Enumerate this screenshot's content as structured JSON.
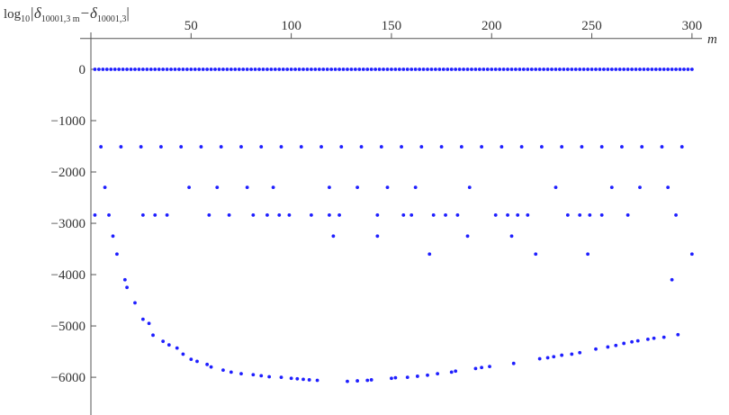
{
  "chart_data": {
    "type": "scatter",
    "ylabel_parts": [
      "log",
      "10",
      "|δ",
      "10001,3 m",
      "−δ",
      "10001,3",
      "|"
    ],
    "xlabel": "m",
    "color": "#1f1fff",
    "xlim": [
      0,
      305
    ],
    "ylim": [
      -6700,
      1245
    ],
    "x_axis_at": 600,
    "xticks": [
      50,
      100,
      150,
      200,
      250,
      300
    ],
    "yticks": [
      0,
      {
        "value": -1000,
        "label": "−1000"
      },
      {
        "value": -2000,
        "label": "−2000"
      },
      {
        "value": -3000,
        "label": "−3000"
      },
      {
        "value": -4000,
        "label": "−4000"
      },
      {
        "value": -5000,
        "label": "−5000"
      },
      {
        "value": -6000,
        "label": "−6000"
      }
    ],
    "x": [
      2,
      4,
      6,
      8,
      10,
      12,
      14,
      16,
      18,
      20,
      22,
      24,
      26,
      28,
      30,
      32,
      34,
      36,
      38,
      40,
      42,
      44,
      46,
      48,
      50,
      52,
      54,
      56,
      58,
      60,
      62,
      64,
      66,
      68,
      70,
      72,
      74,
      76,
      78,
      80,
      82,
      84,
      86,
      88,
      90,
      92,
      94,
      96,
      98,
      100,
      102,
      104,
      106,
      108,
      110,
      112,
      114,
      116,
      118,
      120,
      122,
      124,
      126,
      128,
      130,
      132,
      134,
      136,
      138,
      140,
      142,
      144,
      146,
      148,
      150,
      152,
      154,
      156,
      158,
      160,
      162,
      164,
      166,
      168,
      170,
      172,
      174,
      176,
      178,
      180,
      182,
      184,
      186,
      188,
      190,
      192,
      194,
      196,
      198,
      200,
      202,
      204,
      206,
      208,
      210,
      212,
      214,
      216,
      218,
      220,
      222,
      224,
      226,
      228,
      230,
      232,
      234,
      236,
      238,
      240,
      242,
      244,
      246,
      248,
      250,
      252,
      254,
      256,
      258,
      260,
      262,
      264,
      266,
      268,
      270,
      272,
      274,
      276,
      278,
      280,
      282,
      284,
      286,
      288,
      290,
      292,
      294,
      296,
      298,
      300,
      5,
      15,
      25,
      35,
      45,
      55,
      65,
      75,
      85,
      95,
      105,
      115,
      125,
      135,
      145,
      155,
      165,
      175,
      185,
      195,
      205,
      215,
      225,
      235,
      245,
      255,
      265,
      275,
      285,
      295,
      7,
      49,
      63,
      78,
      91,
      119,
      133,
      148,
      162,
      189,
      232,
      260,
      274,
      288,
      2,
      9,
      26,
      32,
      38,
      59,
      69,
      81,
      88,
      94,
      99,
      110,
      119,
      124,
      143,
      156,
      160,
      171,
      177,
      183,
      202,
      208,
      213,
      218,
      238,
      244,
      249,
      255,
      268,
      292,
      11,
      121,
      143,
      188,
      210,
      13,
      169,
      222,
      248,
      300,
      17,
      18,
      290,
      22,
      26,
      29,
      31,
      36,
      39,
      43,
      46,
      50,
      53,
      58,
      60,
      66,
      70,
      75,
      81,
      85,
      89,
      95,
      100,
      103,
      106,
      109,
      113,
      128,
      133,
      138,
      140,
      150,
      152,
      158,
      163,
      168,
      173,
      180,
      182,
      192,
      195,
      199,
      211,
      224,
      228,
      231,
      235,
      240,
      244,
      252,
      258,
      262,
      266,
      270,
      273,
      278,
      281,
      286,
      293
    ],
    "values": [
      0,
      0,
      0,
      0,
      0,
      0,
      0,
      0,
      0,
      0,
      0,
      0,
      0,
      0,
      0,
      0,
      0,
      0,
      0,
      0,
      0,
      0,
      0,
      0,
      0,
      0,
      0,
      0,
      0,
      0,
      0,
      0,
      0,
      0,
      0,
      0,
      0,
      0,
      0,
      0,
      0,
      0,
      0,
      0,
      0,
      0,
      0,
      0,
      0,
      0,
      0,
      0,
      0,
      0,
      0,
      0,
      0,
      0,
      0,
      0,
      0,
      0,
      0,
      0,
      0,
      0,
      0,
      0,
      0,
      0,
      0,
      0,
      0,
      0,
      0,
      0,
      0,
      0,
      0,
      0,
      0,
      0,
      0,
      0,
      0,
      0,
      0,
      0,
      0,
      0,
      0,
      0,
      0,
      0,
      0,
      0,
      0,
      0,
      0,
      0,
      0,
      0,
      0,
      0,
      0,
      0,
      0,
      0,
      0,
      0,
      0,
      0,
      0,
      0,
      0,
      0,
      0,
      0,
      0,
      0,
      0,
      0,
      0,
      0,
      0,
      0,
      0,
      0,
      0,
      0,
      0,
      0,
      0,
      0,
      0,
      0,
      0,
      0,
      0,
      0,
      0,
      0,
      0,
      0,
      0,
      0,
      0,
      0,
      0,
      0,
      -1510,
      -1510,
      -1510,
      -1510,
      -1510,
      -1510,
      -1510,
      -1510,
      -1510,
      -1510,
      -1510,
      -1510,
      -1510,
      -1510,
      -1510,
      -1510,
      -1510,
      -1510,
      -1510,
      -1510,
      -1510,
      -1510,
      -1510,
      -1510,
      -1510,
      -1510,
      -1510,
      -1510,
      -1510,
      -1510,
      -2300,
      -2300,
      -2300,
      -2300,
      -2300,
      -2300,
      -2300,
      -2300,
      -2300,
      -2300,
      -2300,
      -2300,
      -2300,
      -2300,
      -2840,
      -2840,
      -2840,
      -2840,
      -2840,
      -2840,
      -2840,
      -2840,
      -2840,
      -2840,
      -2840,
      -2840,
      -2840,
      -2840,
      -2840,
      -2840,
      -2840,
      -2840,
      -2840,
      -2840,
      -2840,
      -2840,
      -2840,
      -2840,
      -2840,
      -2840,
      -2840,
      -2840,
      -2840,
      -2840,
      -3250,
      -3250,
      -3250,
      -3250,
      -3250,
      -3600,
      -3600,
      -3600,
      -3600,
      -3600,
      -4100,
      -4250,
      -4100,
      -4550,
      -4870,
      -4950,
      -5180,
      -5300,
      -5370,
      -5430,
      -5550,
      -5650,
      -5690,
      -5750,
      -5800,
      -5860,
      -5900,
      -5930,
      -5950,
      -5970,
      -5990,
      -6000,
      -6020,
      -6030,
      -6040,
      -6050,
      -6060,
      -6080,
      -6070,
      -6060,
      -6050,
      -6020,
      -6010,
      -6000,
      -5980,
      -5960,
      -5930,
      -5900,
      -5880,
      -5830,
      -5810,
      -5790,
      -5730,
      -5640,
      -5620,
      -5600,
      -5570,
      -5550,
      -5520,
      -5450,
      -5410,
      -5380,
      -5340,
      -5310,
      -5290,
      -5260,
      -5240,
      -5220,
      -5170
    ]
  }
}
